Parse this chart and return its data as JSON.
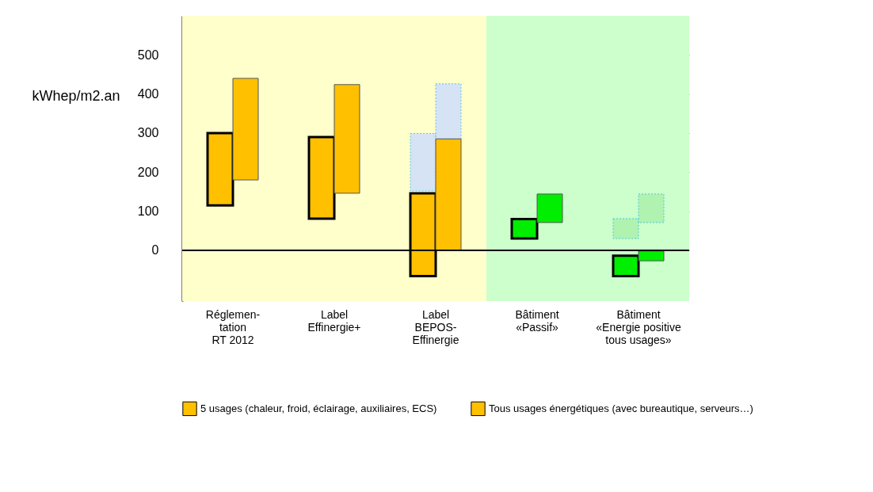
{
  "chart_data": {
    "type": "bar",
    "categories": [
      "Réglemen-\ntation\nRT 2012",
      "Label\nEffinergie+",
      "Label\nBEPOS-\nEffinergie",
      "Bâtiment\n«Passif»",
      "Bâtiment\n«Energie positive\ntous usages»"
    ],
    "ylabel": "kWhep/m2.an",
    "series": [
      {
        "line_style": "dotted",
        "colors": [
          null,
          null,
          "#ccddff",
          null,
          "#aaf0aa"
        ],
        "base": [
          null,
          null,
          152,
          null,
          30
        ],
        "values": [
          null,
          null,
          147,
          null,
          51
        ]
      },
      {
        "line_style": "dotted",
        "colors": [
          null,
          null,
          "#ccddff",
          null,
          "#aaf0aa"
        ],
        "base": [
          null,
          null,
          285,
          null,
          71
        ],
        "values": [
          null,
          null,
          141,
          null,
          73
        ]
      },
      {
        "name": "5 usages (chaleur, froid, éclairage, auxiliaires, ECS)",
        "color": "#ffc000",
        "colors": [
          "#ffc000",
          "#ffc000",
          "#ffc000",
          "#00ee00",
          "#00ee00"
        ],
        "base": [
          115,
          81,
          -66,
          30,
          -66
        ],
        "values": [
          185,
          209,
          212,
          50,
          52
        ]
      },
      {
        "name": "Tous usages énergétiques (avec bureautique, serveurs…)",
        "color": "#ffc000",
        "colors": [
          "#ffc000",
          "#ffc000",
          "#ffc000",
          "#00ee00",
          "#00ee00"
        ],
        "base": [
          180,
          146,
          0,
          71,
          -27
        ],
        "values": [
          260,
          278,
          285,
          73,
          25
        ]
      }
    ],
    "ylim": [
      -130,
      600
    ],
    "yticks": [
      0,
      100,
      200,
      300,
      400,
      500
    ],
    "grid": "y",
    "ref_lines": [
      {
        "axis": "y",
        "value": 0,
        "color": "#000000"
      }
    ],
    "bands": [
      {
        "axis": "x",
        "from": "Réglemen-\ntation\nRT 2012",
        "to": "Label\nBEPOS-\nEffinergie",
        "color": "#ffffcc"
      },
      {
        "axis": "x",
        "from": "Bâtiment\n«Passif»",
        "to": "Bâtiment\n«Energie positive\ntous usages»",
        "color": "#ccffcc"
      }
    ],
    "legend": "bottom"
  }
}
